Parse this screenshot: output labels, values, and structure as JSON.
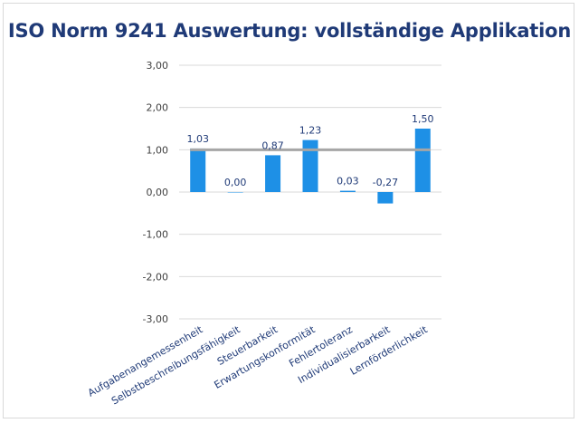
{
  "chart_data": {
    "type": "bar",
    "title": "ISO Norm 9241 Auswertung: vollständige Applikation",
    "categories": [
      "Aufgabenangemessenheit",
      "Selbstbeschreibungsfähigkeit",
      "Steuerbarkeit",
      "Erwartungskonformität",
      "Fehlertoleranz",
      "Individualisierbarkeit",
      "Lernförderlichkeit"
    ],
    "values": [
      1.03,
      0.0,
      0.87,
      1.23,
      0.03,
      -0.27,
      1.5
    ],
    "data_labels": [
      "1,03",
      "0,00",
      "0,87",
      "1,23",
      "0,03",
      "-0,27",
      "1,50"
    ],
    "ylim": [
      -3,
      3
    ],
    "yticks": [
      3,
      2,
      1,
      0,
      -1,
      -2,
      -3
    ],
    "ytick_labels": [
      "3,00",
      "2,00",
      "1,00",
      "0,00",
      "-1,00",
      "-2,00",
      "-3,00"
    ],
    "reference_line": 1.0,
    "grid": true,
    "colors": {
      "bar": "#1e90e6",
      "reference_line": "#a6a6a6",
      "grid": "#d9d9d9",
      "title": "#1f3a77"
    }
  }
}
